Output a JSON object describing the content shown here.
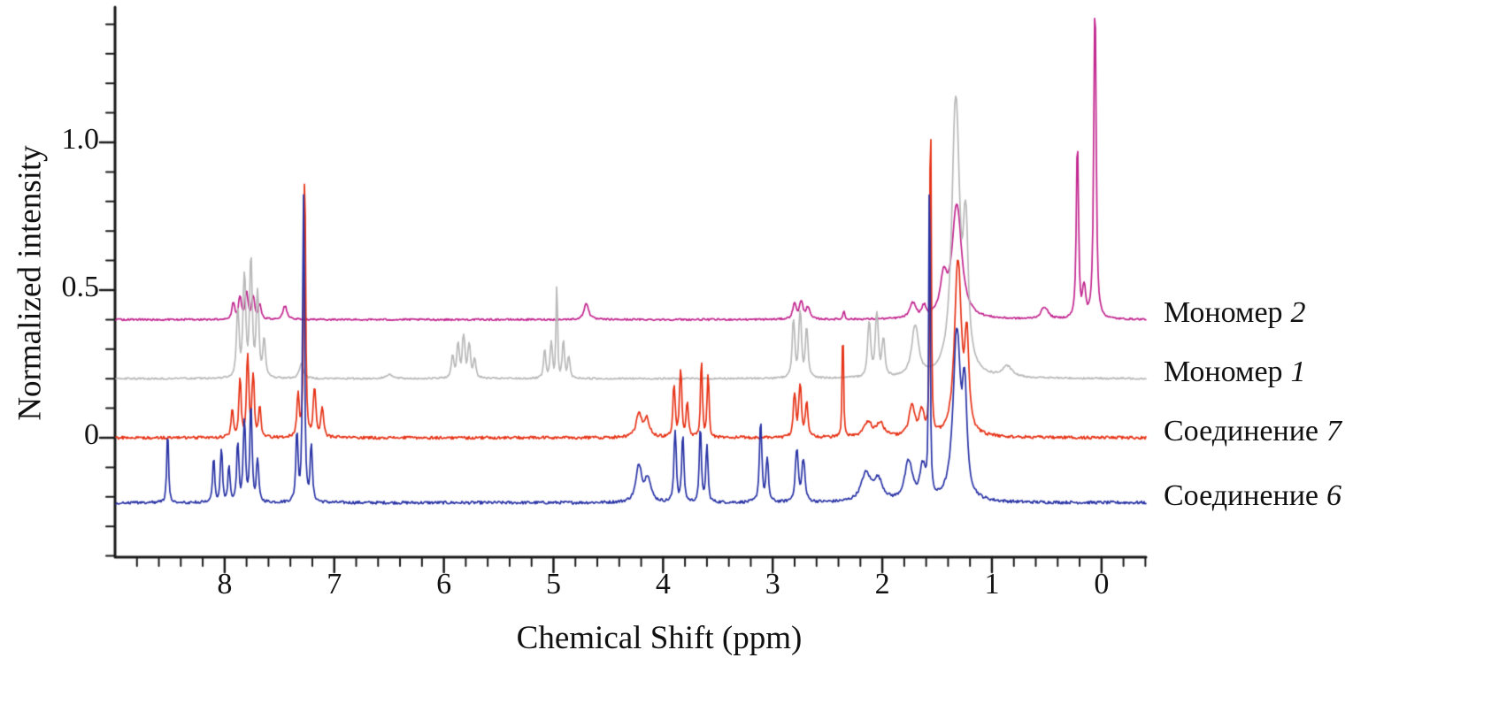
{
  "chart_data": {
    "type": "line",
    "subtype": "nmr-spectra-stacked",
    "xlabel": "Chemical Shift (ppm)",
    "ylabel": "Normalized intensity",
    "grid": false,
    "legend_position": "right-outside",
    "x_axis": {
      "range": [
        9.0,
        -0.405
      ],
      "reversed": true,
      "minor_step": 0.2,
      "major_ticks": [
        {
          "v": 8,
          "label": "8"
        },
        {
          "v": 7,
          "label": "7"
        },
        {
          "v": 6,
          "label": "6"
        },
        {
          "v": 5,
          "label": "5"
        },
        {
          "v": 4,
          "label": "4"
        },
        {
          "v": 3,
          "label": "3"
        },
        {
          "v": 2,
          "label": "2"
        },
        {
          "v": 1,
          "label": "1"
        },
        {
          "v": 0,
          "label": "0"
        }
      ]
    },
    "y_axis": {
      "range": [
        -0.405,
        1.46
      ],
      "minor_step": 0.1,
      "major_ticks": [
        {
          "v": 1.0,
          "label": "1.0"
        },
        {
          "v": 0.5,
          "label": "0.5"
        },
        {
          "v": 0.0,
          "label": "0"
        }
      ]
    },
    "series": [
      {
        "label": "Мономер",
        "label_number": "2",
        "color": "#c2268f",
        "baseline": 0.4,
        "noise": 0.003,
        "peaks": [
          [
            7.92,
            0.055,
            0.013
          ],
          [
            7.86,
            0.075,
            0.013
          ],
          [
            7.8,
            0.09,
            0.013
          ],
          [
            7.74,
            0.075,
            0.013
          ],
          [
            7.68,
            0.05,
            0.013
          ],
          [
            7.45,
            0.045,
            0.02
          ],
          [
            4.7,
            0.055,
            0.022
          ],
          [
            2.8,
            0.05,
            0.018
          ],
          [
            2.74,
            0.055,
            0.018
          ],
          [
            2.68,
            0.04,
            0.018
          ],
          [
            2.35,
            0.028,
            0.007
          ],
          [
            1.72,
            0.05,
            0.03
          ],
          [
            1.62,
            0.035,
            0.02
          ],
          [
            1.44,
            0.12,
            0.035
          ],
          [
            1.32,
            0.38,
            0.05
          ],
          [
            0.52,
            0.04,
            0.035
          ],
          [
            0.22,
            0.56,
            0.01
          ],
          [
            0.16,
            0.1,
            0.015
          ],
          [
            0.06,
            1.02,
            0.011
          ]
        ]
      },
      {
        "label": "Мономер",
        "label_number": "1",
        "color": "#b9b9b9",
        "baseline": 0.2,
        "noise": 0.003,
        "peaks": [
          [
            7.88,
            0.22,
            0.012
          ],
          [
            7.82,
            0.34,
            0.012
          ],
          [
            7.76,
            0.38,
            0.012
          ],
          [
            7.7,
            0.28,
            0.012
          ],
          [
            7.64,
            0.12,
            0.012
          ],
          [
            7.3,
            0.05,
            0.02
          ],
          [
            6.5,
            0.015,
            0.03
          ],
          [
            5.92,
            0.07,
            0.012
          ],
          [
            5.87,
            0.11,
            0.012
          ],
          [
            5.82,
            0.14,
            0.012
          ],
          [
            5.77,
            0.11,
            0.012
          ],
          [
            5.72,
            0.06,
            0.012
          ],
          [
            5.08,
            0.09,
            0.01
          ],
          [
            5.02,
            0.12,
            0.01
          ],
          [
            4.97,
            0.31,
            0.006
          ],
          [
            4.91,
            0.12,
            0.01
          ],
          [
            4.86,
            0.07,
            0.01
          ],
          [
            2.81,
            0.19,
            0.012
          ],
          [
            2.75,
            0.22,
            0.012
          ],
          [
            2.69,
            0.16,
            0.012
          ],
          [
            2.12,
            0.18,
            0.014
          ],
          [
            2.05,
            0.21,
            0.014
          ],
          [
            1.99,
            0.12,
            0.014
          ],
          [
            1.7,
            0.17,
            0.035
          ],
          [
            1.33,
            0.92,
            0.04
          ],
          [
            1.24,
            0.45,
            0.025
          ],
          [
            0.86,
            0.035,
            0.05
          ]
        ]
      },
      {
        "label": "Соединение",
        "label_number": "7",
        "color": "#e63317",
        "baseline": 0.0,
        "noise": 0.005,
        "peaks": [
          [
            7.93,
            0.09,
            0.011
          ],
          [
            7.86,
            0.19,
            0.01
          ],
          [
            7.79,
            0.27,
            0.01
          ],
          [
            7.74,
            0.21,
            0.01
          ],
          [
            7.68,
            0.1,
            0.01
          ],
          [
            7.33,
            0.14,
            0.01
          ],
          [
            7.27,
            0.85,
            0.008
          ],
          [
            7.18,
            0.16,
            0.012
          ],
          [
            7.11,
            0.1,
            0.012
          ],
          [
            4.22,
            0.075,
            0.028
          ],
          [
            4.15,
            0.06,
            0.028
          ],
          [
            3.9,
            0.17,
            0.01
          ],
          [
            3.84,
            0.22,
            0.01
          ],
          [
            3.78,
            0.11,
            0.01
          ],
          [
            3.65,
            0.25,
            0.008
          ],
          [
            3.59,
            0.21,
            0.008
          ],
          [
            2.8,
            0.14,
            0.012
          ],
          [
            2.75,
            0.17,
            0.012
          ],
          [
            2.69,
            0.11,
            0.012
          ],
          [
            2.36,
            0.32,
            0.006
          ],
          [
            2.13,
            0.05,
            0.04
          ],
          [
            2.02,
            0.045,
            0.04
          ],
          [
            1.73,
            0.1,
            0.03
          ],
          [
            1.64,
            0.08,
            0.025
          ],
          [
            1.56,
            1.0,
            0.006
          ],
          [
            1.31,
            0.58,
            0.035
          ],
          [
            1.23,
            0.3,
            0.02
          ]
        ]
      },
      {
        "label": "Соединение",
        "label_number": "6",
        "color": "#2a34a5",
        "baseline": -0.22,
        "noise": 0.005,
        "peaks": [
          [
            8.52,
            0.22,
            0.008
          ],
          [
            8.1,
            0.14,
            0.009
          ],
          [
            8.03,
            0.18,
            0.009
          ],
          [
            7.96,
            0.12,
            0.009
          ],
          [
            7.88,
            0.19,
            0.01
          ],
          [
            7.82,
            0.27,
            0.01
          ],
          [
            7.76,
            0.31,
            0.01
          ],
          [
            7.7,
            0.14,
            0.01
          ],
          [
            7.34,
            0.22,
            0.01
          ],
          [
            7.28,
            1.04,
            0.008
          ],
          [
            7.21,
            0.18,
            0.01
          ],
          [
            4.22,
            0.12,
            0.03
          ],
          [
            4.14,
            0.08,
            0.03
          ],
          [
            3.89,
            0.24,
            0.01
          ],
          [
            3.82,
            0.21,
            0.01
          ],
          [
            3.66,
            0.24,
            0.009
          ],
          [
            3.6,
            0.19,
            0.009
          ],
          [
            3.11,
            0.26,
            0.011
          ],
          [
            3.05,
            0.14,
            0.011
          ],
          [
            2.78,
            0.17,
            0.014
          ],
          [
            2.72,
            0.14,
            0.014
          ],
          [
            2.15,
            0.09,
            0.05
          ],
          [
            2.04,
            0.07,
            0.05
          ],
          [
            1.76,
            0.13,
            0.04
          ],
          [
            1.63,
            0.11,
            0.03
          ],
          [
            1.57,
            1.0,
            0.006
          ],
          [
            1.32,
            0.56,
            0.038
          ],
          [
            1.25,
            0.33,
            0.022
          ]
        ]
      }
    ]
  }
}
